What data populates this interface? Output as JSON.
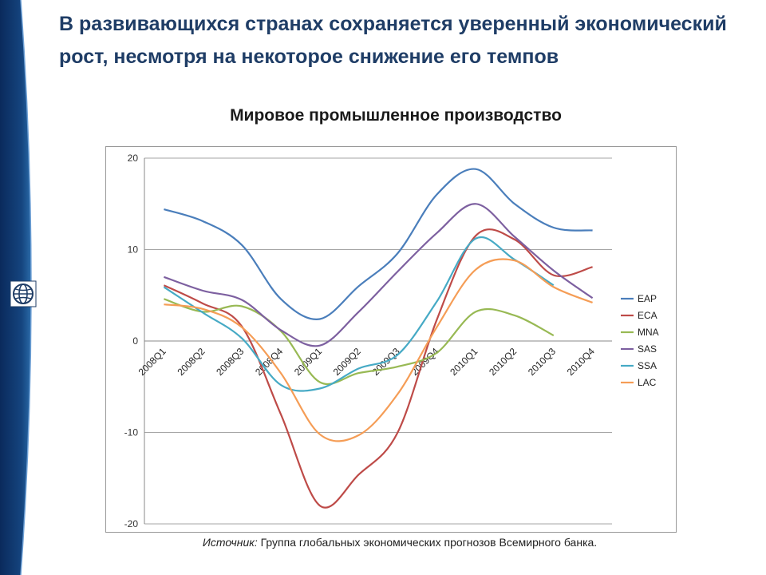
{
  "slide": {
    "title": "В развивающихся странах сохраняется уверенный экономический рост, несмотря на некоторое снижение его темпов",
    "source_label": "Источник:",
    "source_text": " Группа глобальных экономических прогнозов Всемирного банка."
  },
  "logo": {
    "icon": "globe-icon",
    "color": "#1f3d66"
  },
  "chart_data": {
    "type": "line",
    "title": "Мировое промышленное производство",
    "xlabel": "",
    "ylabel": "",
    "ylim": [
      -20,
      20
    ],
    "yticks": [
      20,
      10,
      0,
      -10,
      -20
    ],
    "grid": true,
    "legend": "right",
    "categories": [
      "2008Q1",
      "2008Q2",
      "2008Q3",
      "2008Q4",
      "2009Q1",
      "2009Q2",
      "2009Q3",
      "2009Q4",
      "2010Q1",
      "2010Q2",
      "2010Q3",
      "2010Q4"
    ],
    "series": [
      {
        "name": "EAP",
        "color": "#4a7ebb",
        "values": [
          14.4,
          13.1,
          10.5,
          4.6,
          2.4,
          6.0,
          9.6,
          16.0,
          18.8,
          15.0,
          12.4,
          12.1
        ]
      },
      {
        "name": "ECA",
        "color": "#be4b48",
        "values": [
          6.1,
          4.1,
          1.6,
          -8.0,
          -18.0,
          -14.6,
          -10.0,
          2.3,
          11.5,
          11.1,
          7.2,
          8.1
        ]
      },
      {
        "name": "MNA",
        "color": "#98b954",
        "values": [
          4.6,
          3.2,
          3.8,
          1.1,
          -4.5,
          -3.5,
          -2.8,
          -1.3,
          3.2,
          2.8,
          0.6,
          null
        ]
      },
      {
        "name": "SAS",
        "color": "#7d60a0",
        "values": [
          7.0,
          5.5,
          4.5,
          1.2,
          -0.5,
          3.2,
          7.6,
          11.8,
          15.0,
          11.4,
          7.7,
          4.7
        ]
      },
      {
        "name": "SSA",
        "color": "#46aac5",
        "values": [
          5.9,
          3.1,
          0.3,
          -4.8,
          -5.2,
          -3.0,
          -1.5,
          4.3,
          11.2,
          8.9,
          6.1,
          null
        ]
      },
      {
        "name": "LAC",
        "color": "#f59d56",
        "values": [
          4.0,
          3.5,
          1.5,
          -3.5,
          -10.2,
          -10.3,
          -5.8,
          1.5,
          7.8,
          8.8,
          5.9,
          4.2
        ]
      }
    ]
  }
}
